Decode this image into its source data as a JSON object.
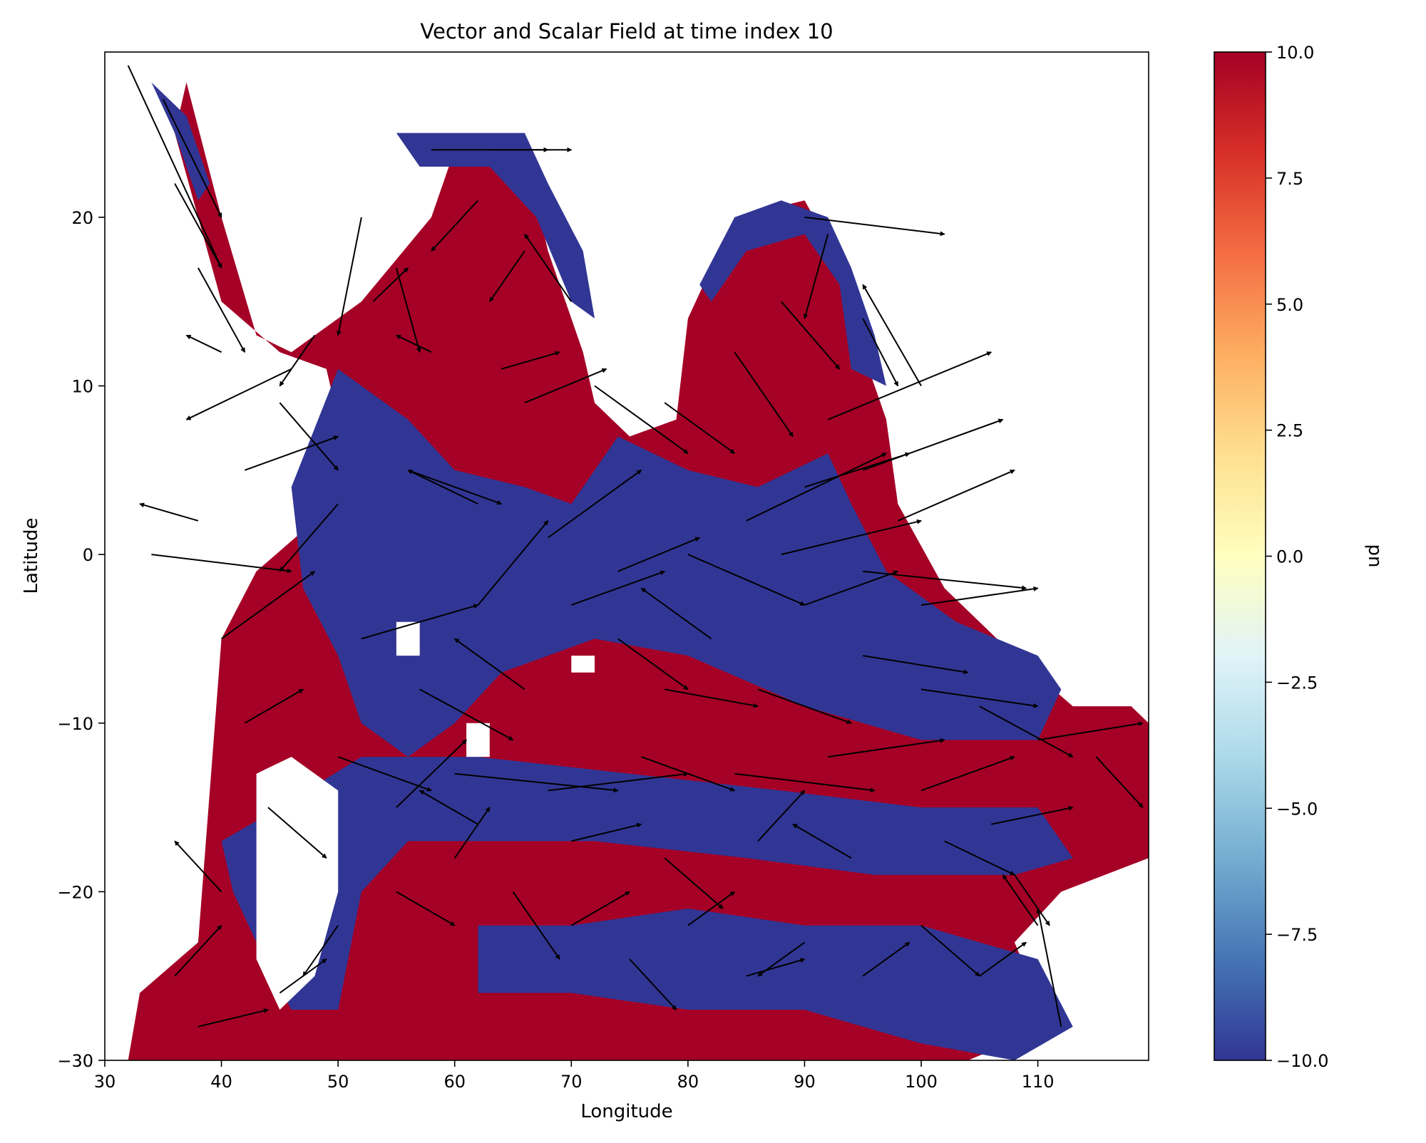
{
  "chart_data": {
    "type": "heatmap",
    "title": "Vector and Scalar Field at time index 10",
    "xlabel": "Longitude",
    "ylabel": "Latitude",
    "xlim": [
      30,
      119.5
    ],
    "ylim": [
      -30,
      29.8
    ],
    "xticks": [
      30,
      40,
      50,
      60,
      70,
      80,
      90,
      100,
      110
    ],
    "yticks": [
      -30,
      -20,
      -10,
      0,
      10,
      20
    ],
    "grid": false,
    "colorbar": {
      "label": "pn",
      "vmin": -10.0,
      "vmax": 10.0,
      "ticks": [
        "10.0",
        "7.5",
        "5.0",
        "2.5",
        "0.0",
        "−2.5",
        "−5.0",
        "−7.5",
        "−10.0"
      ],
      "colormap": "RdYlBu_r",
      "stops": [
        "#313695",
        "#4575b4",
        "#74add1",
        "#abd9e9",
        "#e0f3f8",
        "#ffffbf",
        "#fee090",
        "#fdae61",
        "#f46d43",
        "#d73027",
        "#a50026"
      ]
    },
    "scalar_field_note_colors": {
      "high": "#a50026",
      "low": "#313695",
      "land": "#ffffff"
    },
    "scalar_regions": [
      {
        "value": 10,
        "lonlat": [
          [
            37,
            28
          ],
          [
            40,
            20
          ],
          [
            43,
            13
          ],
          [
            46,
            12
          ],
          [
            52,
            15
          ],
          [
            58,
            20
          ],
          [
            60,
            24
          ],
          [
            66,
            24
          ],
          [
            68,
            18
          ],
          [
            71,
            12
          ],
          [
            72,
            9
          ],
          [
            75,
            7
          ],
          [
            79,
            8
          ],
          [
            80,
            14
          ],
          [
            84,
            20
          ],
          [
            90,
            21
          ],
          [
            94,
            16
          ],
          [
            95,
            12
          ],
          [
            97,
            8
          ],
          [
            98,
            3
          ],
          [
            102,
            -2
          ],
          [
            108,
            -6
          ],
          [
            113,
            -9
          ],
          [
            118,
            -9
          ],
          [
            119.5,
            -10
          ],
          [
            119.5,
            -18
          ],
          [
            112,
            -20
          ],
          [
            108,
            -23
          ],
          [
            111,
            -28
          ],
          [
            104,
            -30
          ],
          [
            32,
            -30
          ],
          [
            33,
            -26
          ],
          [
            38,
            -23
          ],
          [
            40,
            -5
          ],
          [
            43,
            -1
          ],
          [
            48,
            2
          ],
          [
            50,
            8
          ],
          [
            49,
            11
          ],
          [
            45,
            12
          ],
          [
            40,
            15
          ],
          [
            36,
            25
          ]
        ]
      },
      {
        "value": -10,
        "lonlat": [
          [
            50,
            11
          ],
          [
            56,
            8
          ],
          [
            60,
            5
          ],
          [
            66,
            4
          ],
          [
            70,
            3
          ],
          [
            74,
            7
          ],
          [
            80,
            5
          ],
          [
            86,
            4
          ],
          [
            92,
            6
          ],
          [
            94,
            3
          ],
          [
            97,
            -1
          ],
          [
            103,
            -4
          ],
          [
            110,
            -6
          ],
          [
            112,
            -8
          ],
          [
            110,
            -11
          ],
          [
            100,
            -11
          ],
          [
            90,
            -9
          ],
          [
            80,
            -6
          ],
          [
            72,
            -5
          ],
          [
            64,
            -7
          ],
          [
            60,
            -10
          ],
          [
            56,
            -12
          ],
          [
            52,
            -10
          ],
          [
            50,
            -6
          ],
          [
            47,
            -2
          ],
          [
            46,
            4
          ]
        ]
      },
      {
        "value": -10,
        "lonlat": [
          [
            40,
            -17
          ],
          [
            45,
            -15
          ],
          [
            52,
            -12
          ],
          [
            62,
            -12
          ],
          [
            75,
            -13
          ],
          [
            88,
            -14
          ],
          [
            100,
            -15
          ],
          [
            110,
            -15
          ],
          [
            113,
            -18
          ],
          [
            108,
            -19
          ],
          [
            96,
            -19
          ],
          [
            85,
            -18
          ],
          [
            72,
            -17
          ],
          [
            62,
            -17
          ],
          [
            56,
            -17
          ],
          [
            52,
            -20
          ],
          [
            50,
            -27
          ],
          [
            46,
            -27
          ],
          [
            43,
            -23
          ],
          [
            41,
            -20
          ]
        ]
      },
      {
        "value": -10,
        "lonlat": [
          [
            62,
            -22
          ],
          [
            70,
            -22
          ],
          [
            80,
            -21
          ],
          [
            90,
            -22
          ],
          [
            100,
            -22
          ],
          [
            110,
            -24
          ],
          [
            113,
            -28
          ],
          [
            108,
            -30
          ],
          [
            100,
            -29
          ],
          [
            90,
            -27
          ],
          [
            80,
            -27
          ],
          [
            70,
            -26
          ],
          [
            62,
            -26
          ]
        ]
      },
      {
        "value": -10,
        "lonlat": [
          [
            55,
            25
          ],
          [
            59,
            25
          ],
          [
            62,
            25
          ],
          [
            66,
            25
          ],
          [
            68,
            22
          ],
          [
            71,
            18
          ],
          [
            72,
            14
          ],
          [
            70,
            15
          ],
          [
            67,
            20
          ],
          [
            63,
            23
          ],
          [
            57,
            23
          ]
        ]
      },
      {
        "value": -10,
        "lonlat": [
          [
            81,
            16
          ],
          [
            84,
            20
          ],
          [
            88,
            21
          ],
          [
            92,
            20
          ],
          [
            94,
            17
          ],
          [
            96,
            13
          ],
          [
            97,
            10
          ],
          [
            94,
            11
          ],
          [
            93,
            16
          ],
          [
            90,
            19
          ],
          [
            85,
            18
          ],
          [
            82,
            15
          ]
        ]
      },
      {
        "value": -10,
        "lonlat": [
          [
            34,
            28
          ],
          [
            37,
            26
          ],
          [
            39,
            22
          ],
          [
            38,
            21
          ],
          [
            36,
            25
          ]
        ]
      }
    ],
    "land_mask_regions": [
      {
        "lonlat": [
          [
            43,
            -13
          ],
          [
            46,
            -12
          ],
          [
            50,
            -14
          ],
          [
            50,
            -20
          ],
          [
            48,
            -25
          ],
          [
            45,
            -27
          ],
          [
            43,
            -24
          ],
          [
            43,
            -18
          ]
        ]
      },
      {
        "lonlat": [
          [
            55,
            -4
          ],
          [
            57,
            -4
          ],
          [
            57,
            -6
          ],
          [
            55,
            -6
          ]
        ]
      },
      {
        "lonlat": [
          [
            61,
            -10
          ],
          [
            63,
            -10
          ],
          [
            63,
            -12
          ],
          [
            61,
            -12
          ]
        ]
      },
      {
        "lonlat": [
          [
            70,
            -6
          ],
          [
            72,
            -6
          ],
          [
            72,
            -7
          ],
          [
            70,
            -7
          ]
        ]
      }
    ],
    "vectors_note": "Quiver arrows; each entry is [lon, lat, dlon, dlat] in data units",
    "vectors": [
      [
        32,
        29,
        8,
        -12
      ],
      [
        35,
        27,
        5,
        -7
      ],
      [
        36,
        22,
        4,
        -5
      ],
      [
        38,
        17,
        4,
        -5
      ],
      [
        40,
        12,
        -3,
        1
      ],
      [
        46,
        11,
        -9,
        -3
      ],
      [
        52,
        20,
        -2,
        -7
      ],
      [
        55,
        17,
        2,
        -5
      ],
      [
        58,
        24,
        10,
        0
      ],
      [
        63,
        24,
        7,
        0
      ],
      [
        62,
        21,
        -4,
        -3
      ],
      [
        66,
        18,
        -3,
        -3
      ],
      [
        70,
        15,
        -4,
        4
      ],
      [
        64,
        11,
        5,
        1
      ],
      [
        58,
        12,
        -3,
        1
      ],
      [
        53,
        15,
        3,
        2
      ],
      [
        48,
        13,
        -3,
        -3
      ],
      [
        45,
        9,
        5,
        -4
      ],
      [
        42,
        5,
        8,
        2
      ],
      [
        38,
        2,
        -5,
        1
      ],
      [
        34,
        0,
        12,
        -1
      ],
      [
        40,
        -5,
        8,
        4
      ],
      [
        42,
        -10,
        5,
        2
      ],
      [
        44,
        -15,
        5,
        -3
      ],
      [
        40,
        -20,
        -4,
        3
      ],
      [
        36,
        -25,
        4,
        3
      ],
      [
        38,
        -28,
        6,
        1
      ],
      [
        45,
        -26,
        4,
        2
      ],
      [
        50,
        -22,
        -3,
        -3
      ],
      [
        55,
        -20,
        5,
        -2
      ],
      [
        60,
        -18,
        3,
        3
      ],
      [
        65,
        -20,
        4,
        -4
      ],
      [
        70,
        -22,
        5,
        2
      ],
      [
        75,
        -24,
        4,
        -3
      ],
      [
        80,
        -22,
        4,
        2
      ],
      [
        85,
        -25,
        5,
        1
      ],
      [
        90,
        -23,
        -4,
        -2
      ],
      [
        95,
        -25,
        4,
        2
      ],
      [
        100,
        -22,
        5,
        -3
      ],
      [
        105,
        -25,
        4,
        2
      ],
      [
        110,
        -22,
        -3,
        3
      ],
      [
        112,
        -28,
        -2,
        7
      ],
      [
        52,
        -5,
        10,
        2
      ],
      [
        57,
        -8,
        8,
        -3
      ],
      [
        62,
        -3,
        6,
        5
      ],
      [
        66,
        -8,
        -6,
        3
      ],
      [
        70,
        -3,
        8,
        2
      ],
      [
        74,
        -5,
        6,
        -3
      ],
      [
        78,
        -8,
        8,
        -1
      ],
      [
        82,
        -5,
        -6,
        3
      ],
      [
        86,
        -8,
        8,
        -2
      ],
      [
        90,
        -3,
        8,
        2
      ],
      [
        95,
        -6,
        9,
        -1
      ],
      [
        100,
        -8,
        10,
        -1
      ],
      [
        105,
        -9,
        8,
        -3
      ],
      [
        110,
        -11,
        9,
        1
      ],
      [
        115,
        -12,
        4,
        -3
      ],
      [
        100,
        -3,
        10,
        1
      ],
      [
        95,
        -1,
        14,
        -1
      ],
      [
        88,
        0,
        12,
        2
      ],
      [
        80,
        0,
        10,
        -3
      ],
      [
        74,
        -1,
        7,
        2
      ],
      [
        68,
        1,
        8,
        4
      ],
      [
        62,
        3,
        -6,
        2
      ],
      [
        56,
        5,
        8,
        -2
      ],
      [
        50,
        3,
        -5,
        -4
      ],
      [
        66,
        9,
        7,
        2
      ],
      [
        72,
        10,
        8,
        -4
      ],
      [
        78,
        9,
        6,
        -3
      ],
      [
        84,
        12,
        5,
        -5
      ],
      [
        88,
        15,
        5,
        -4
      ],
      [
        90,
        20,
        12,
        -1
      ],
      [
        92,
        19,
        -2,
        -5
      ],
      [
        95,
        14,
        3,
        -4
      ],
      [
        100,
        10,
        -5,
        6
      ],
      [
        95,
        5,
        12,
        3
      ],
      [
        98,
        2,
        10,
        3
      ],
      [
        92,
        8,
        14,
        4
      ],
      [
        90,
        4,
        9,
        2
      ],
      [
        85,
        2,
        12,
        4
      ],
      [
        60,
        -13,
        14,
        -1
      ],
      [
        68,
        -14,
        12,
        1
      ],
      [
        76,
        -12,
        8,
        -2
      ],
      [
        84,
        -13,
        12,
        -1
      ],
      [
        92,
        -12,
        10,
        1
      ],
      [
        100,
        -14,
        8,
        2
      ],
      [
        106,
        -16,
        7,
        1
      ],
      [
        50,
        -12,
        8,
        -2
      ],
      [
        55,
        -15,
        6,
        4
      ],
      [
        62,
        -16,
        -5,
        2
      ],
      [
        70,
        -17,
        6,
        1
      ],
      [
        78,
        -18,
        5,
        -3
      ],
      [
        86,
        -17,
        4,
        3
      ],
      [
        94,
        -18,
        -5,
        2
      ],
      [
        102,
        -17,
        6,
        -2
      ],
      [
        108,
        -19,
        3,
        -3
      ]
    ]
  }
}
